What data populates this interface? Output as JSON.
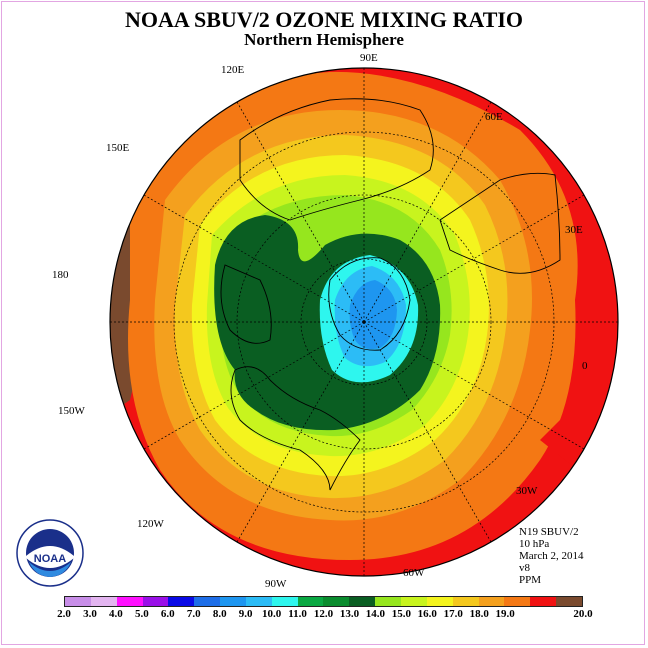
{
  "header": {
    "title": "NOAA SBUV/2 OZONE MIXING RATIO",
    "subtitle": "Northern Hemisphere"
  },
  "map": {
    "longitude_labels": [
      "90E",
      "60E",
      "30E",
      "0",
      "30W",
      "60W",
      "90W",
      "120W",
      "150W",
      "180",
      "150E",
      "120E"
    ]
  },
  "info": {
    "satellite": "N19 SBUV/2",
    "pressure": "10 hPa",
    "date": "March 2, 2014",
    "version": "v8",
    "units": "PPM"
  },
  "logo": {
    "text": "NOAA",
    "ring_text": "NATIONAL OCEANIC AND ATMOSPHERIC ADMINISTRATION · U.S. DEPARTMENT OF COMMERCE"
  },
  "colorbar": {
    "ticks": [
      "2.0",
      "3.0",
      "4.0",
      "5.0",
      "6.0",
      "7.0",
      "8.0",
      "9.0",
      "10.0",
      "11.0",
      "12.0",
      "13.0",
      "14.0",
      "15.0",
      "16.0",
      "17.0",
      "18.0",
      "19.0",
      "20.0"
    ],
    "colors": [
      "#c88ee8",
      "#e3b5f0",
      "#ff10ff",
      "#9a10e8",
      "#0a0ae6",
      "#1e6ee8",
      "#1e96f0",
      "#2cbcf6",
      "#2ef6ee",
      "#0aa842",
      "#0a8c2e",
      "#0a5e22",
      "#96e61e",
      "#c8f41e",
      "#f4f41e",
      "#f4c81e",
      "#f4a01e",
      "#f47814",
      "#f01212",
      "#7a4a2e"
    ]
  },
  "colors": {
    "frame": "#e2a6e2",
    "ocean_ring": "#f01212"
  }
}
